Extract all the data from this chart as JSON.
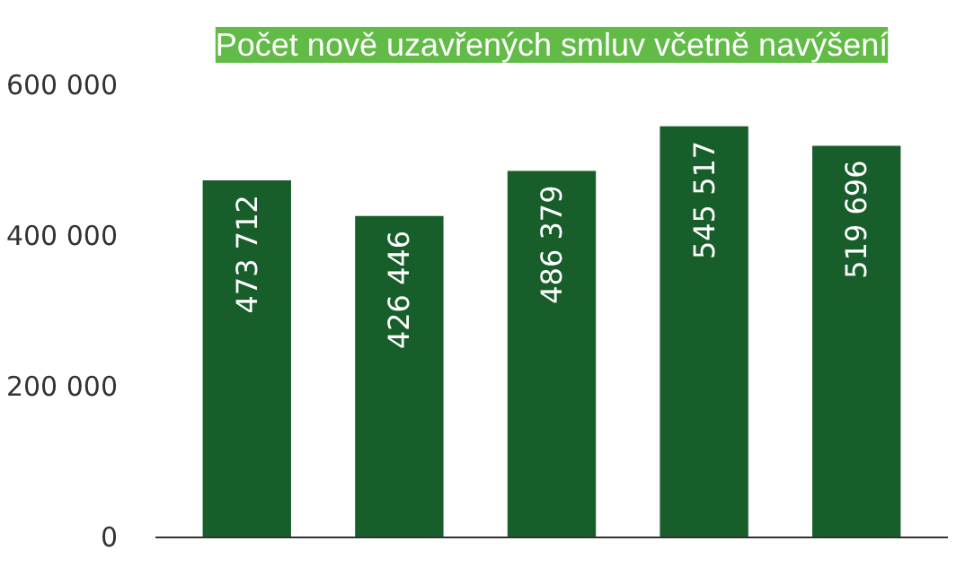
{
  "chart_data": {
    "type": "bar",
    "title": "Počet nově uzavřených smluv včetně navýšení",
    "categories": [
      null,
      null,
      null,
      null,
      null
    ],
    "values": [
      473712,
      426446,
      486379,
      545517,
      519696
    ],
    "color": "#175e2b",
    "ylim": [
      0,
      600000
    ],
    "yticks": [
      {
        "value": 0,
        "label": "0"
      },
      {
        "value": 200000,
        "label": "200 000"
      },
      {
        "value": 400000,
        "label": "400 000"
      },
      {
        "value": 600000,
        "label": "600 000"
      }
    ],
    "data_labels": true,
    "grid": false
  }
}
